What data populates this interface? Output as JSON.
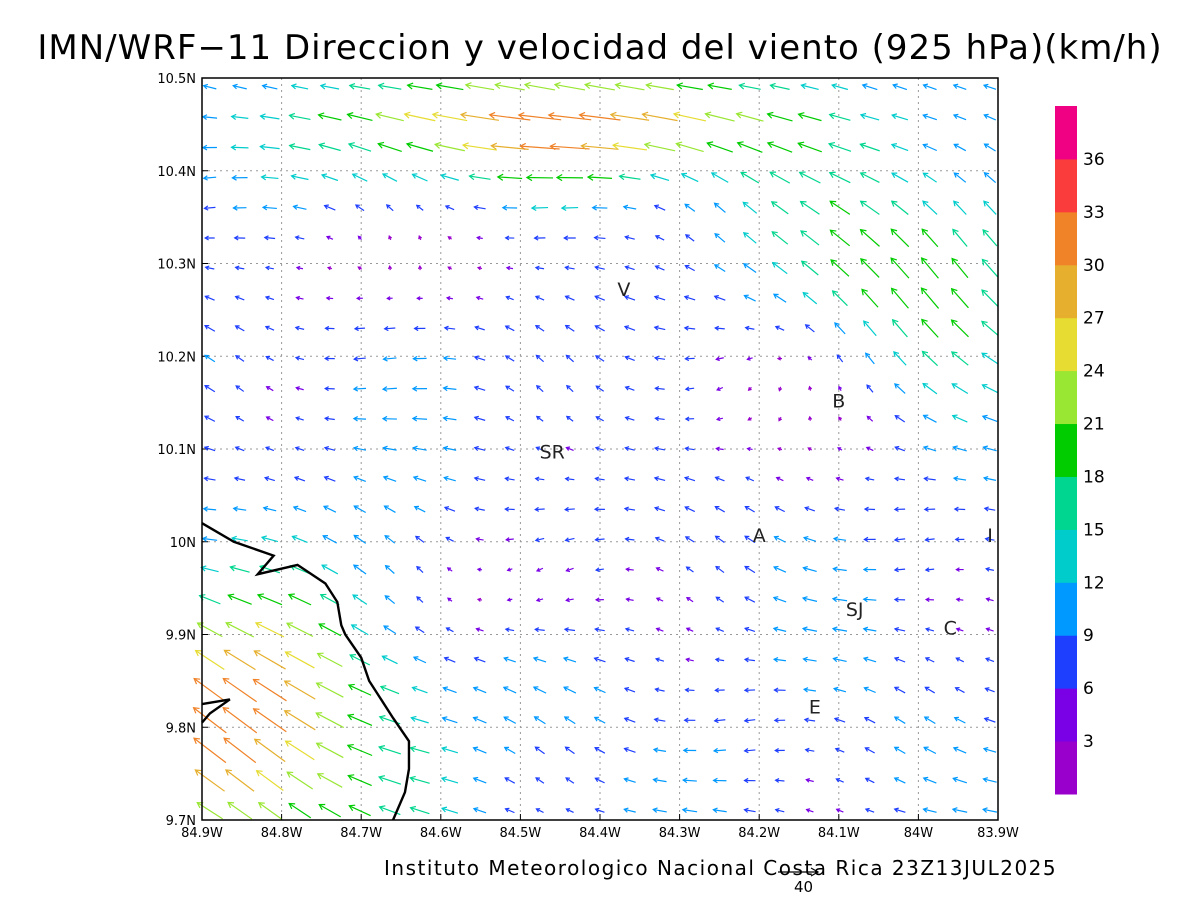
{
  "title": "IMN/WRF−11 Direccion y velocidad del viento (925 hPa)(km/h)",
  "footer": "Instituto Meteorologico Nacional Costa Rica 23Z13JUL2025",
  "reference_vector_label": "40",
  "map": {
    "lon_range": [
      -84.9,
      -83.9
    ],
    "lat_range": [
      9.7,
      10.5
    ],
    "lon_ticks": [
      {
        "value": -84.9,
        "label": "84.9W"
      },
      {
        "value": -84.8,
        "label": "84.8W"
      },
      {
        "value": -84.7,
        "label": "84.7W"
      },
      {
        "value": -84.6,
        "label": "84.6W"
      },
      {
        "value": -84.5,
        "label": "84.5W"
      },
      {
        "value": -84.4,
        "label": "84.4W"
      },
      {
        "value": -84.3,
        "label": "84.3W"
      },
      {
        "value": -84.2,
        "label": "84.2W"
      },
      {
        "value": -84.1,
        "label": "84.1W"
      },
      {
        "value": -84.0,
        "label": "84W"
      },
      {
        "value": -83.9,
        "label": "83.9W"
      }
    ],
    "lat_ticks": [
      {
        "value": 9.7,
        "label": "9.7N"
      },
      {
        "value": 9.8,
        "label": "9.8N"
      },
      {
        "value": 9.9,
        "label": "9.9N"
      },
      {
        "value": 10.0,
        "label": "10N"
      },
      {
        "value": 10.1,
        "label": "10.1N"
      },
      {
        "value": 10.2,
        "label": "10.2N"
      },
      {
        "value": 10.3,
        "label": "10.3N"
      },
      {
        "value": 10.4,
        "label": "10.4N"
      },
      {
        "value": 10.5,
        "label": "10.5N"
      }
    ],
    "gridlines": true,
    "places": [
      {
        "label": "V",
        "lon": -84.37,
        "lat": 10.265
      },
      {
        "label": "B",
        "lon": -84.1,
        "lat": 10.145
      },
      {
        "label": "SR",
        "lon": -84.46,
        "lat": 10.09
      },
      {
        "label": "A",
        "lon": -84.2,
        "lat": 10.0
      },
      {
        "label": "I",
        "lon": -83.91,
        "lat": 10.0
      },
      {
        "label": "SJ",
        "lon": -84.08,
        "lat": 9.92
      },
      {
        "label": "C",
        "lon": -83.96,
        "lat": 9.9
      },
      {
        "label": "E",
        "lon": -84.13,
        "lat": 9.815
      }
    ],
    "coastline": [
      [
        -84.9,
        10.02
      ],
      [
        -84.86,
        10.0
      ],
      [
        -84.81,
        9.985
      ],
      [
        -84.83,
        9.965
      ],
      [
        -84.78,
        9.975
      ],
      [
        -84.745,
        9.955
      ],
      [
        -84.73,
        9.935
      ],
      [
        -84.725,
        9.91
      ],
      [
        -84.72,
        9.9
      ],
      [
        -84.7,
        9.875
      ],
      [
        -84.69,
        9.85
      ],
      [
        -84.66,
        9.81
      ],
      [
        -84.64,
        9.785
      ],
      [
        -84.64,
        9.755
      ],
      [
        -84.645,
        9.73
      ],
      [
        -84.66,
        9.7
      ]
    ],
    "island_outline": [
      [
        -84.9,
        9.805
      ],
      [
        -84.89,
        9.815
      ],
      [
        -84.865,
        9.83
      ],
      [
        -84.9,
        9.825
      ]
    ],
    "wind_speed_colorbar": {
      "labels": [
        "3",
        "6",
        "9",
        "12",
        "15",
        "18",
        "21",
        "24",
        "27",
        "30",
        "33",
        "36"
      ],
      "colors": [
        "#9900cc",
        "#7a00e6",
        "#1f3fff",
        "#0099ff",
        "#00cccc",
        "#00d68f",
        "#00cc00",
        "#99e633",
        "#e6dc32",
        "#e6af2d",
        "#f08228",
        "#fa3c3c",
        "#f00082"
      ]
    }
  }
}
